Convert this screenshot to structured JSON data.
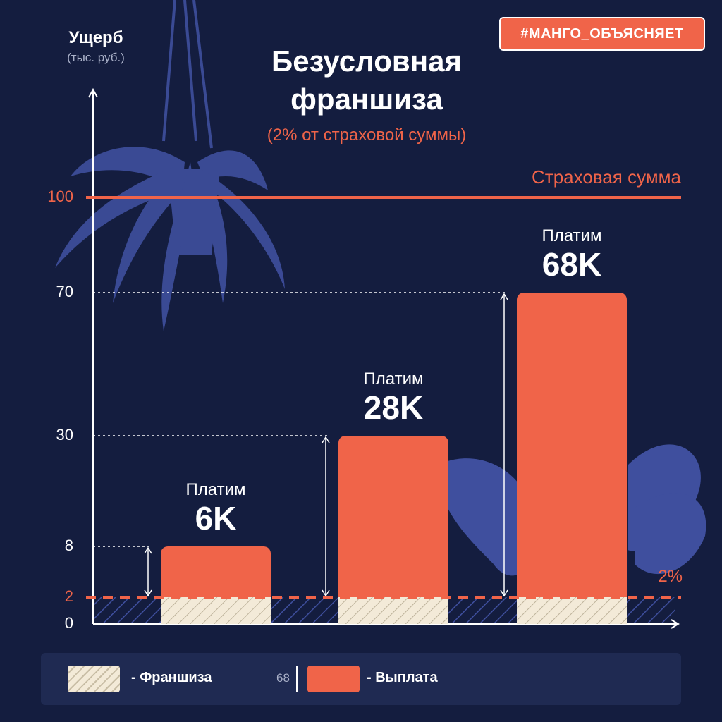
{
  "tag": "#МАНГО_ОБЪЯСНЯЕТ",
  "colors": {
    "background": "#141d3f",
    "accent": "#f06449",
    "bar": "#f06449",
    "deductible": "#f3ead8",
    "text": "#ffffff",
    "decor": "#3f4f9e"
  },
  "legend": {
    "deductible": "- Франшиза",
    "payout": "- Выплата",
    "payout_example": "68"
  },
  "chart_data": {
    "type": "bar",
    "title": "Безусловная франшиза",
    "subtitle": "(2% от страховой суммы)",
    "ylabel": "Ущерб",
    "yunit": "(тыс. руб.)",
    "ylim": [
      0,
      100
    ],
    "yticks": [
      "0",
      "2",
      "8",
      "30",
      "70",
      "100"
    ],
    "insured_sum": {
      "value": 100,
      "label": "Страховая сумма"
    },
    "deductible": {
      "value": 2,
      "label": "2%"
    },
    "bars": [
      {
        "damage": 8,
        "deductible": 2,
        "payout": 6,
        "caption": "Платим",
        "value_label": "6K"
      },
      {
        "damage": 30,
        "deductible": 2,
        "payout": 28,
        "caption": "Платим",
        "value_label": "28K"
      },
      {
        "damage": 70,
        "deductible": 2,
        "payout": 68,
        "caption": "Платим",
        "value_label": "68K"
      }
    ]
  }
}
